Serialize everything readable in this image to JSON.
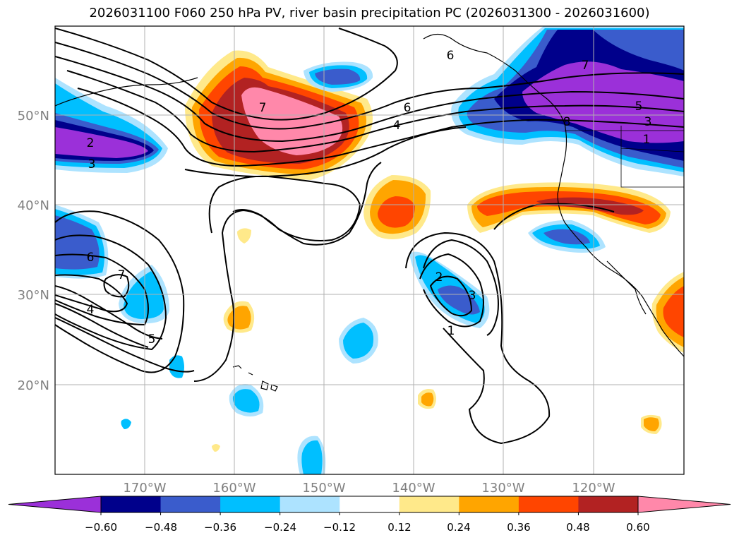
{
  "title": "2026031100 F060 250 hPa PV, river basin precipitation PC (2026031300 - 2026031600)",
  "lat_labels": [
    "50°N",
    "40°N",
    "30°N",
    "20°N"
  ],
  "lat_values": [
    50,
    40,
    30,
    20
  ],
  "lon_labels": [
    "170°W",
    "160°W",
    "150°W",
    "140°W",
    "130°W",
    "120°W"
  ],
  "lon_values": [
    -170,
    -160,
    -150,
    -140,
    -130,
    -120
  ],
  "map_extent": {
    "lon": [
      -180,
      -110
    ],
    "lat": [
      10,
      60
    ]
  },
  "colorbar": {
    "ticks": [
      "−0.60",
      "−0.48",
      "−0.36",
      "−0.24",
      "−0.12",
      "0.12",
      "0.24",
      "0.36",
      "0.48",
      "0.60"
    ],
    "tick_values": [
      -0.6,
      -0.48,
      -0.36,
      -0.24,
      -0.12,
      0.12,
      0.24,
      0.36,
      0.48,
      0.6
    ],
    "colors": [
      "#9b30d9",
      "#00008b",
      "#3a5ccc",
      "#00bfff",
      "#ade3ff",
      "#ffffff",
      "#ffe98a",
      "#ffa500",
      "#ff4500",
      "#b22222",
      "#ff88aa"
    ]
  },
  "pv_contour_labels": [
    "7",
    "6",
    "4",
    "2",
    "3",
    "6",
    "7",
    "4",
    "5",
    "2",
    "3",
    "1",
    "6",
    "7",
    "5",
    "3",
    "1",
    "8"
  ],
  "colors": {
    "grid": "#b0b0b0",
    "axis_label": "#808080",
    "contour": "#000000",
    "coast": "#000000"
  }
}
